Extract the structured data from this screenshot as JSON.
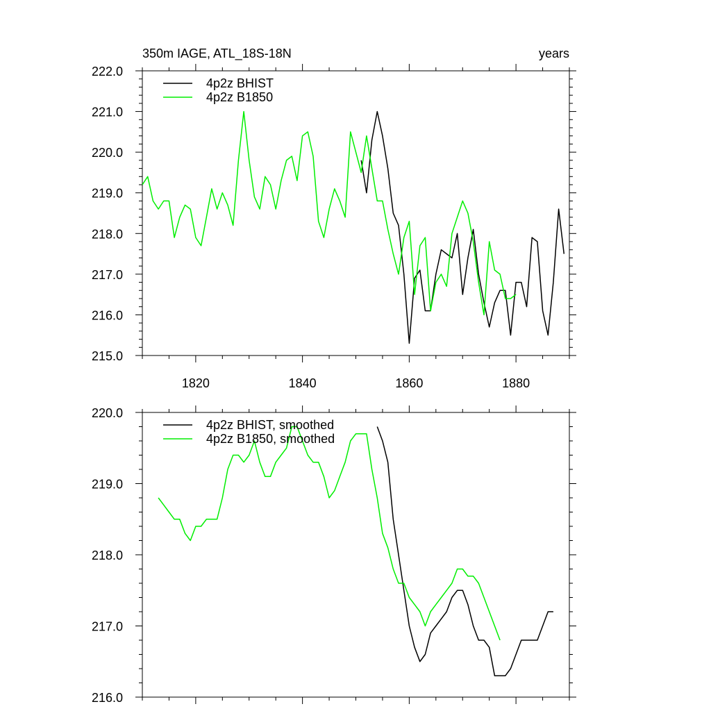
{
  "header": {
    "title": "350m IAGE, ATL_18S-18N",
    "units": "years"
  },
  "colors": {
    "bhist": "#000000",
    "b1850": "#00ee00",
    "frame": "#000000"
  },
  "chart_data": [
    {
      "type": "line",
      "xlim": [
        1810,
        1890
      ],
      "ylim": [
        215.0,
        222.0
      ],
      "xticks": [
        1820,
        1840,
        1860,
        1880
      ],
      "xtick_labels": [
        "1820",
        "1840",
        "1860",
        "1880"
      ],
      "yticks": [
        215.0,
        216.0,
        217.0,
        218.0,
        219.0,
        220.0,
        221.0,
        222.0
      ],
      "ytick_labels": [
        "215.0",
        "216.0",
        "217.0",
        "218.0",
        "219.0",
        "220.0",
        "221.0",
        "222.0"
      ],
      "legend_position": "top-left",
      "series": [
        {
          "name": "4p2z BHIST",
          "color": "#000000",
          "x": [
            1851,
            1852,
            1853,
            1854,
            1855,
            1856,
            1857,
            1858,
            1859,
            1860,
            1861,
            1862,
            1863,
            1864,
            1865,
            1866,
            1867,
            1868,
            1869,
            1870,
            1871,
            1872,
            1873,
            1874,
            1875,
            1876,
            1877,
            1878,
            1879,
            1880,
            1881,
            1882,
            1883,
            1884,
            1885,
            1886,
            1887,
            1888,
            1889
          ],
          "y": [
            219.8,
            219.0,
            220.3,
            221.0,
            220.4,
            219.6,
            218.5,
            218.2,
            217.0,
            215.3,
            216.9,
            217.1,
            216.1,
            216.1,
            217.0,
            217.6,
            217.5,
            217.4,
            218.0,
            216.5,
            217.4,
            218.1,
            217.0,
            216.3,
            215.7,
            216.3,
            216.6,
            216.6,
            215.5,
            216.8,
            216.8,
            216.2,
            217.9,
            217.8,
            216.1,
            215.5,
            216.8,
            218.6,
            217.5
          ]
        },
        {
          "name": "4p2z B1850",
          "color": "#00ee00",
          "x": [
            1810,
            1811,
            1812,
            1813,
            1814,
            1815,
            1816,
            1817,
            1818,
            1819,
            1820,
            1821,
            1822,
            1823,
            1824,
            1825,
            1826,
            1827,
            1828,
            1829,
            1830,
            1831,
            1832,
            1833,
            1834,
            1835,
            1836,
            1837,
            1838,
            1839,
            1840,
            1841,
            1842,
            1843,
            1844,
            1845,
            1846,
            1847,
            1848,
            1849,
            1850,
            1851,
            1852,
            1853,
            1854,
            1855,
            1856,
            1857,
            1858,
            1859,
            1860,
            1861,
            1862,
            1863,
            1864,
            1865,
            1866,
            1867,
            1868,
            1869,
            1870,
            1871,
            1872,
            1873,
            1874,
            1875,
            1876,
            1877,
            1878,
            1879,
            1880
          ],
          "y": [
            219.2,
            219.4,
            218.8,
            218.6,
            218.8,
            218.8,
            217.9,
            218.4,
            218.7,
            218.6,
            217.9,
            217.7,
            218.4,
            219.1,
            218.6,
            219.0,
            218.7,
            218.2,
            219.8,
            221.0,
            219.8,
            218.9,
            218.6,
            219.4,
            219.2,
            218.6,
            219.3,
            219.8,
            219.9,
            219.3,
            220.4,
            220.5,
            219.9,
            218.3,
            217.9,
            218.6,
            219.1,
            218.8,
            218.4,
            220.5,
            220.0,
            219.5,
            220.4,
            219.6,
            218.8,
            218.8,
            218.1,
            217.5,
            217.0,
            217.9,
            218.3,
            216.5,
            217.7,
            217.9,
            216.1,
            216.8,
            217.0,
            216.7,
            218.0,
            218.4,
            218.8,
            218.5,
            217.8,
            216.8,
            216.0,
            217.8,
            217.1,
            217.0,
            216.4,
            216.4,
            216.5
          ]
        }
      ]
    },
    {
      "type": "line",
      "xlim": [
        1810,
        1890
      ],
      "ylim": [
        216.0,
        220.0
      ],
      "xticks": [
        1820,
        1840,
        1860,
        1880
      ],
      "xtick_labels": [],
      "yticks": [
        216.0,
        217.0,
        218.0,
        219.0,
        220.0
      ],
      "ytick_labels": [
        "216.0",
        "217.0",
        "218.0",
        "219.0",
        "220.0"
      ],
      "legend_position": "top-left",
      "series": [
        {
          "name": "4p2z BHIST, smoothed",
          "color": "#000000",
          "x": [
            1854,
            1855,
            1856,
            1857,
            1858,
            1859,
            1860,
            1861,
            1862,
            1863,
            1864,
            1865,
            1866,
            1867,
            1868,
            1869,
            1870,
            1871,
            1872,
            1873,
            1874,
            1875,
            1876,
            1877,
            1878,
            1879,
            1880,
            1881,
            1882,
            1883,
            1884,
            1885,
            1886,
            1887
          ],
          "y": [
            219.8,
            219.6,
            219.3,
            218.5,
            218.0,
            217.5,
            217.0,
            216.7,
            216.5,
            216.6,
            216.9,
            217.0,
            217.1,
            217.2,
            217.4,
            217.5,
            217.5,
            217.3,
            217.0,
            216.8,
            216.8,
            216.7,
            216.3,
            216.3,
            216.3,
            216.4,
            216.6,
            216.8,
            216.8,
            216.8,
            216.8,
            217.0,
            217.2,
            217.2
          ]
        },
        {
          "name": "4p2z B1850, smoothed",
          "color": "#00ee00",
          "x": [
            1813,
            1814,
            1815,
            1816,
            1817,
            1818,
            1819,
            1820,
            1821,
            1822,
            1823,
            1824,
            1825,
            1826,
            1827,
            1828,
            1829,
            1830,
            1831,
            1832,
            1833,
            1834,
            1835,
            1836,
            1837,
            1838,
            1839,
            1840,
            1841,
            1842,
            1843,
            1844,
            1845,
            1846,
            1847,
            1848,
            1849,
            1850,
            1851,
            1852,
            1853,
            1854,
            1855,
            1856,
            1857,
            1858,
            1859,
            1860,
            1861,
            1862,
            1863,
            1864,
            1865,
            1866,
            1867,
            1868,
            1869,
            1870,
            1871,
            1872,
            1873,
            1874,
            1875,
            1876,
            1877
          ],
          "y": [
            218.8,
            218.7,
            218.6,
            218.5,
            218.5,
            218.3,
            218.2,
            218.4,
            218.4,
            218.5,
            218.5,
            218.5,
            218.8,
            219.2,
            219.4,
            219.4,
            219.3,
            219.4,
            219.6,
            219.3,
            219.1,
            219.1,
            219.3,
            219.4,
            219.5,
            219.8,
            219.8,
            219.6,
            219.4,
            219.3,
            219.3,
            219.1,
            218.8,
            218.9,
            219.1,
            219.3,
            219.6,
            219.7,
            219.7,
            219.7,
            219.2,
            218.8,
            218.3,
            218.1,
            217.8,
            217.6,
            217.6,
            217.4,
            217.3,
            217.2,
            217.0,
            217.2,
            217.3,
            217.4,
            217.5,
            217.6,
            217.8,
            217.8,
            217.7,
            217.7,
            217.6,
            217.4,
            217.2,
            217.0,
            216.8
          ]
        }
      ]
    }
  ]
}
